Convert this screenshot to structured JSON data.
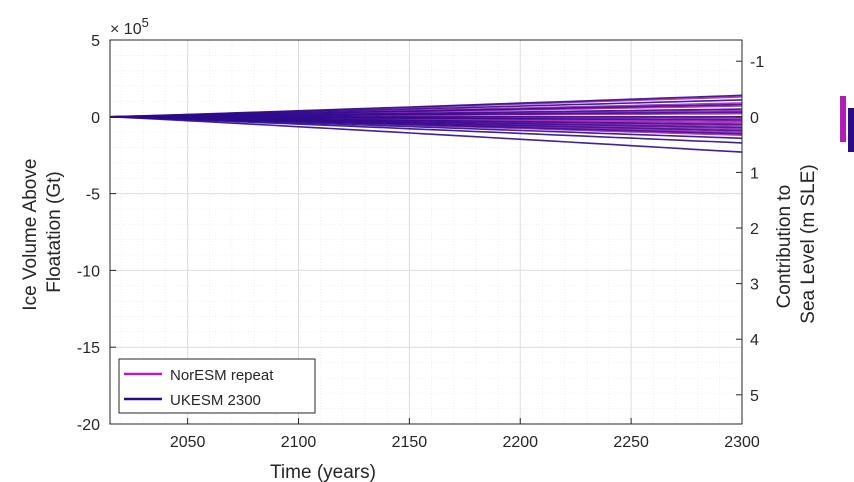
{
  "chart_data": {
    "type": "line",
    "xlabel": "Time (years)",
    "ylabel_left": [
      "Ice Volume Above",
      "Floatation (Gt)"
    ],
    "ylabel_right": [
      "Contribution to",
      "Sea Level (m SLE)"
    ],
    "exponent_label": "× 10",
    "exponent_power": "5",
    "xlim": [
      2015,
      2300
    ],
    "ylim": [
      -20,
      5
    ],
    "y_scale": 100000,
    "x_ticks": [
      2050,
      2100,
      2150,
      2200,
      2250,
      2300
    ],
    "x_tick_labels": [
      "2050",
      "2100",
      "2150",
      "2200",
      "2250",
      "2300"
    ],
    "y_ticks": [
      5,
      0,
      -5,
      -10,
      -15,
      -20
    ],
    "y_tick_labels": [
      "5",
      "0",
      "-5",
      "-10",
      "-15",
      "-20"
    ],
    "right_ticks": [
      -1,
      0,
      1,
      2,
      3,
      4,
      5
    ],
    "right_tick_labels": [
      "-1",
      "0",
      "1",
      "2",
      "3",
      "4",
      "5"
    ],
    "right_tick_y_values": [
      3.62,
      0,
      -3.62,
      -7.24,
      -10.86,
      -14.48,
      -18.1
    ],
    "grid": true,
    "legend_position": "bottom-left",
    "series": [
      {
        "name": "NorESM repeat",
        "color": "#b01eb5",
        "x_start": 2015,
        "x_end": 2300,
        "end_values": [
          1.3,
          0.9,
          0.7,
          0.4,
          0.2,
          -0.1,
          -0.3,
          -0.4,
          -0.6,
          -0.8,
          -1.0,
          -1.2
        ]
      },
      {
        "name": "UKESM 2300",
        "color": "#2b0a8c",
        "x_start": 2015,
        "x_end": 2300,
        "end_values": [
          1.4,
          1.1,
          0.8,
          0.5,
          0.3,
          0.0,
          -0.2,
          -0.5,
          -0.7,
          -0.9,
          -1.1,
          -1.4,
          -1.7,
          -2.3
        ]
      }
    ]
  },
  "colorbar": {
    "colors": [
      "#b01eb5",
      "#2b0a8c"
    ]
  }
}
